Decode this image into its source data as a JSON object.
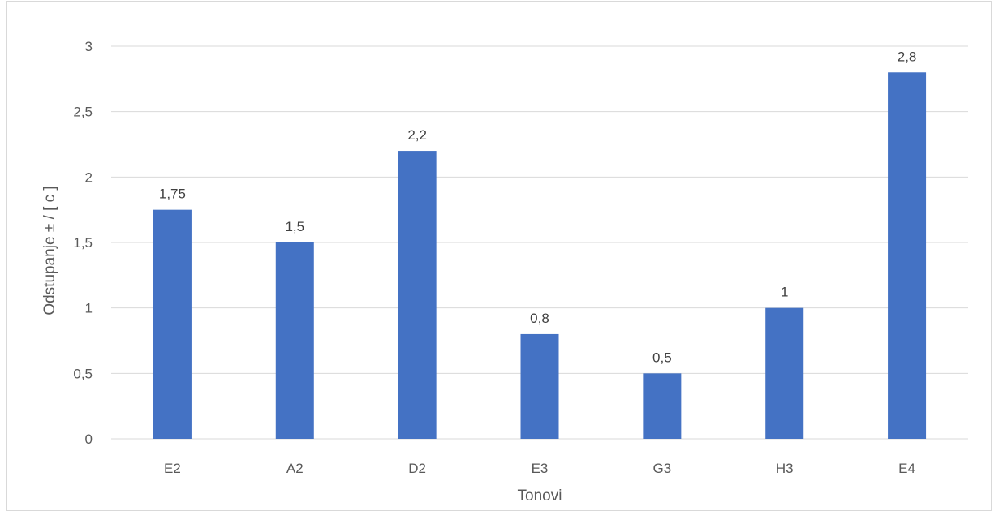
{
  "chart_data": {
    "type": "bar",
    "title": "",
    "xlabel": "Tonovi",
    "ylabel": "Odstupanje ± / [ c ]",
    "categories": [
      "E2",
      "A2",
      "D2",
      "E3",
      "G3",
      "H3",
      "E4"
    ],
    "values": [
      1.75,
      1.5,
      2.2,
      0.8,
      0.5,
      1,
      2.8
    ],
    "data_labels": [
      "1,75",
      "1,5",
      "2,2",
      "0,8",
      "0,5",
      "1",
      "2,8"
    ],
    "ylim": [
      0,
      3
    ],
    "yticks": [
      0,
      0.5,
      1,
      1.5,
      2,
      2.5,
      3
    ],
    "ytick_labels": [
      "0",
      "0,5",
      "1",
      "1,5",
      "2",
      "2,5",
      "3"
    ],
    "grid": true,
    "legend": "none",
    "bar_color": "#4472C4",
    "grid_color": "#d9d9d9"
  }
}
